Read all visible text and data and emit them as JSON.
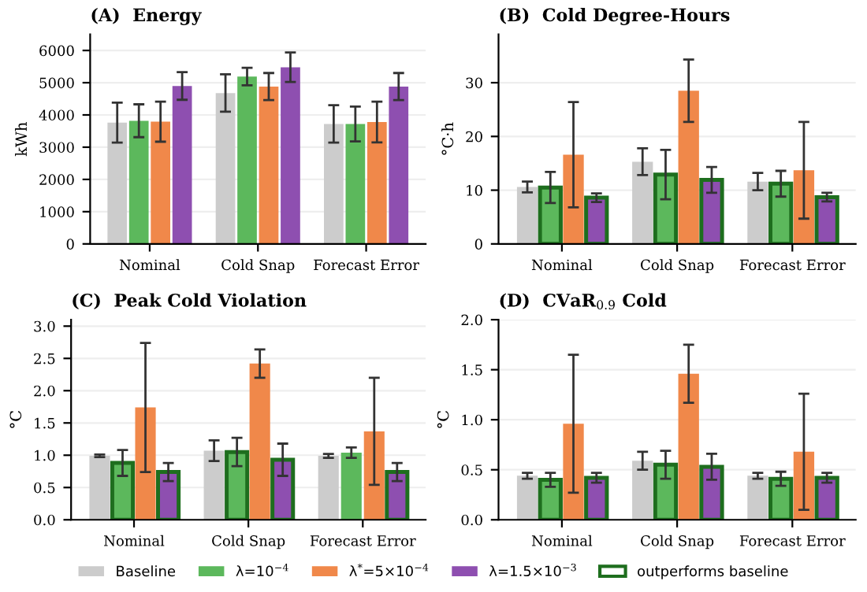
{
  "chart_data": [
    {
      "type": "bar",
      "title": "(A)  Energy",
      "ylabel": "kWh",
      "categories": [
        "Nominal",
        "Cold Snap",
        "Forecast Error"
      ],
      "ylim": [
        0,
        6500
      ],
      "yticks": [
        0,
        1000,
        2000,
        3000,
        4000,
        5000,
        6000
      ],
      "grid": "y",
      "legend": "bottom",
      "series": [
        {
          "name": "Baseline",
          "color": "#cccccc",
          "values": [
            3760,
            4680,
            3720
          ],
          "errors": [
            620,
            580,
            580
          ]
        },
        {
          "name": "λ=10$^{−4}$",
          "color": "#5cb85c",
          "values": [
            3820,
            5190,
            3720
          ],
          "errors": [
            510,
            270,
            540
          ]
        },
        {
          "name": "λ$^{*}$=5×10$^{−4}$",
          "color": "#f0884a",
          "values": [
            3790,
            4880,
            3780
          ],
          "errors": [
            620,
            420,
            630
          ]
        },
        {
          "name": "λ=1.5×10$^{−3}$",
          "color": "#8e4fb0",
          "values": [
            4900,
            5480,
            4880
          ],
          "errors": [
            430,
            460,
            420
          ]
        }
      ]
    },
    {
      "type": "bar",
      "title": "(B)  Cold Degree-Hours",
      "ylabel": "°C·h",
      "categories": [
        "Nominal",
        "Cold Snap",
        "Forecast Error"
      ],
      "ylim": [
        0,
        39
      ],
      "yticks": [
        0,
        10,
        20,
        30
      ],
      "grid": "y",
      "series": [
        {
          "color": "#cccccc",
          "values": [
            10.6,
            15.3,
            11.6
          ],
          "errors": [
            1.0,
            2.5,
            1.6
          ]
        },
        {
          "color": "#5cb85c",
          "values": [
            10.5,
            12.9,
            11.2
          ],
          "errors": [
            2.9,
            4.6,
            2.4
          ]
        },
        {
          "color": "#f0884a",
          "values": [
            16.6,
            28.5,
            13.7
          ],
          "errors": [
            9.8,
            5.8,
            9.0
          ]
        },
        {
          "color": "#8e4fb0",
          "values": [
            8.6,
            11.9,
            8.7
          ],
          "errors": [
            0.8,
            2.4,
            0.8
          ]
        },
        {
          "type": "other",
          "name": "outperforms baseline",
          "color": "#1e6e1e",
          "values": [
            null,
            null,
            null
          ]
        }
      ]
    },
    {
      "type": "bar",
      "title": "(C)  Peak Cold Violation",
      "ylabel": "°C",
      "categories": [
        "Nominal",
        "Cold Snap",
        "Forecast Error"
      ],
      "ylim": [
        0,
        3.1
      ],
      "yticks": [
        {
          "value": 0,
          "label": "0.0"
        },
        0.5,
        {
          "value": 1,
          "label": "1.0"
        },
        1.5,
        {
          "value": 2,
          "label": "2.0"
        },
        2.5,
        {
          "value": 3,
          "label": "3.0"
        }
      ],
      "grid": "y",
      "series": [
        {
          "color": "#cccccc",
          "values": [
            0.99,
            1.07,
            0.99
          ],
          "errors": [
            0.02,
            0.16,
            0.03
          ]
        },
        {
          "color": "#5cb85c",
          "values": [
            0.88,
            1.05,
            1.04
          ],
          "errors": [
            0.2,
            0.22,
            0.08
          ]
        },
        {
          "color": "#f0884a",
          "values": [
            1.74,
            2.42,
            1.37
          ],
          "errors": [
            1.0,
            0.22,
            0.83
          ]
        },
        {
          "color": "#8e4fb0",
          "values": [
            0.74,
            0.93,
            0.74
          ],
          "errors": [
            0.14,
            0.25,
            0.14
          ]
        },
        {
          "type": "other",
          "color": "#1e6e1e",
          "values": [
            null,
            null,
            null
          ]
        }
      ]
    },
    {
      "type": "bar",
      "title": "(D)  CVaR$_{0.9}$ Cold",
      "ylabel": "°C",
      "categories": [
        "Nominal",
        "Cold Snap",
        "Forecast Error"
      ],
      "ylim": [
        0,
        2.0
      ],
      "yticks": [
        {
          "value": 0,
          "label": "0.0"
        },
        0.5,
        {
          "value": 1,
          "label": "1.0"
        },
        1.5,
        {
          "value": 2,
          "label": "2.0"
        }
      ],
      "grid": "y",
      "series": [
        {
          "color": "#cccccc",
          "values": [
            0.44,
            0.59,
            0.44
          ],
          "errors": [
            0.03,
            0.09,
            0.03
          ]
        },
        {
          "color": "#5cb85c",
          "values": [
            0.4,
            0.55,
            0.41
          ],
          "errors": [
            0.07,
            0.14,
            0.07
          ]
        },
        {
          "color": "#f0884a",
          "values": [
            0.96,
            1.46,
            0.68
          ],
          "errors": [
            0.69,
            0.29,
            0.58
          ]
        },
        {
          "color": "#8e4fb0",
          "values": [
            0.42,
            0.53,
            0.42
          ],
          "errors": [
            0.05,
            0.13,
            0.05
          ]
        },
        {
          "type": "other",
          "color": "#1e6e1e",
          "values": [
            null,
            null,
            null
          ]
        }
      ]
    }
  ]
}
